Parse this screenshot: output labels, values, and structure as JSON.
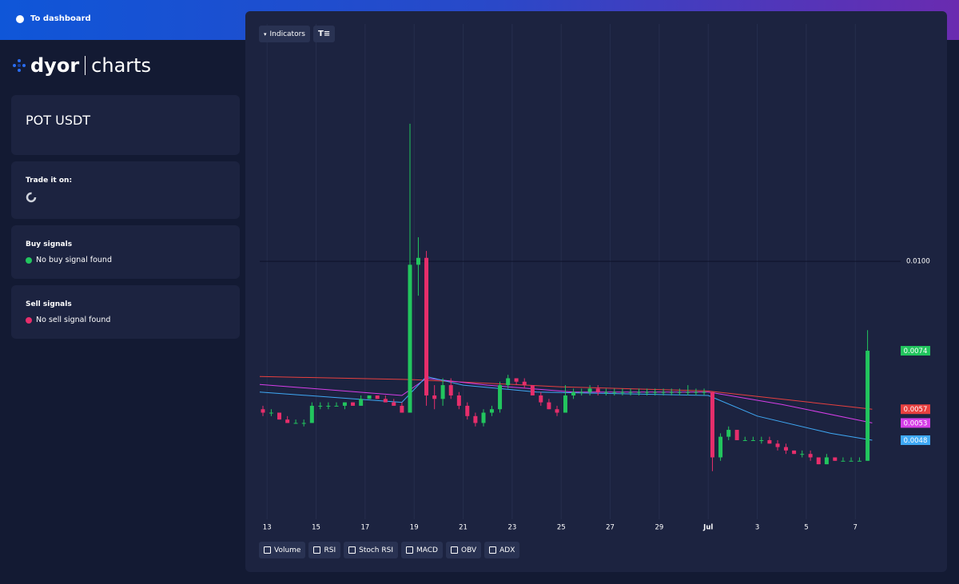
{
  "nav": {
    "link": "To dashboard"
  },
  "logo": {
    "brand": "dyor",
    "product": "charts"
  },
  "pair": "POT USDT",
  "trade": {
    "title": "Trade it on:"
  },
  "buy": {
    "title": "Buy signals",
    "status": "No buy signal found"
  },
  "sell": {
    "title": "Sell signals",
    "status": "No sell signal found"
  },
  "toolbar": {
    "indicators": "Indicators"
  },
  "indicator_toggles": [
    "Volume",
    "RSI",
    "Stoch RSI",
    "MACD",
    "OBV",
    "ADX"
  ],
  "chart_data": {
    "type": "candlestick",
    "up_color": "#22c55e",
    "down_color": "#e62e6b",
    "xlim": [
      12.7,
      38.85
    ],
    "xticks": [
      13,
      15,
      17,
      19,
      21,
      23,
      25,
      27,
      29,
      {
        "value": 31,
        "label": "Jul"
      },
      {
        "value": 33,
        "label": "3"
      },
      {
        "value": 35,
        "label": "5"
      },
      {
        "value": 37,
        "label": "7"
      }
    ],
    "ylim": [
      0.0025,
      0.0169
    ],
    "yticks": [
      {
        "value": 0.01,
        "label": "0.0100"
      }
    ],
    "grid": true,
    "candles": {
      "x": [
        12.83,
        13.17,
        13.5,
        13.83,
        14.17,
        14.5,
        14.83,
        15.17,
        15.5,
        15.83,
        16.17,
        16.5,
        16.83,
        17.17,
        17.5,
        17.83,
        18.17,
        18.5,
        18.83,
        19.17,
        19.5,
        19.83,
        20.17,
        20.5,
        20.83,
        21.17,
        21.5,
        21.83,
        22.17,
        22.5,
        22.83,
        23.17,
        23.5,
        23.83,
        24.17,
        24.5,
        24.83,
        25.17,
        25.5,
        25.83,
        26.17,
        26.5,
        26.83,
        27.17,
        27.5,
        27.83,
        28.17,
        28.5,
        28.83,
        29.17,
        29.5,
        29.83,
        30.17,
        30.5,
        30.83,
        31.17,
        31.5,
        31.83,
        32.17,
        32.5,
        32.83,
        33.17,
        33.5,
        33.83,
        34.17,
        34.5,
        34.83,
        35.17,
        35.5,
        35.83,
        36.17,
        36.5,
        36.83,
        37.17,
        37.5
      ],
      "open": [
        0.0057,
        0.0056,
        0.0056,
        0.0054,
        0.0053,
        0.0053,
        0.0053,
        0.0058,
        0.0058,
        0.0058,
        0.0058,
        0.0059,
        0.0058,
        0.006,
        0.0061,
        0.006,
        0.0059,
        0.0058,
        0.0056,
        0.0099,
        0.0101,
        0.0061,
        0.006,
        0.0064,
        0.0061,
        0.0058,
        0.0055,
        0.0053,
        0.0056,
        0.0057,
        0.0064,
        0.0066,
        0.0065,
        0.0064,
        0.0061,
        0.0059,
        0.0057,
        0.0056,
        0.0061,
        0.0062,
        0.0062,
        0.0063,
        0.0062,
        0.0062,
        0.0062,
        0.0062,
        0.0062,
        0.0062,
        0.0062,
        0.0062,
        0.0062,
        0.0062,
        0.0062,
        0.0062,
        0.0062,
        0.0062,
        0.0043,
        0.0049,
        0.0051,
        0.0048,
        0.0048,
        0.0048,
        0.0048,
        0.0047,
        0.0046,
        0.0045,
        0.0044,
        0.0044,
        0.0043,
        0.0041,
        0.0043,
        0.0042,
        0.0042,
        0.0042,
        0.0042
      ],
      "high": [
        0.0058,
        0.0057,
        0.0056,
        0.0055,
        0.0054,
        0.0054,
        0.0059,
        0.0059,
        0.0059,
        0.0059,
        0.0059,
        0.0059,
        0.0061,
        0.0061,
        0.0061,
        0.0061,
        0.006,
        0.0059,
        0.014,
        0.0107,
        0.0103,
        0.0064,
        0.0066,
        0.0066,
        0.0062,
        0.0059,
        0.0056,
        0.0057,
        0.0058,
        0.0065,
        0.0067,
        0.0066,
        0.0066,
        0.0064,
        0.0062,
        0.006,
        0.0058,
        0.0064,
        0.0063,
        0.0063,
        0.0064,
        0.0064,
        0.0063,
        0.0063,
        0.0063,
        0.0063,
        0.0063,
        0.0063,
        0.0063,
        0.0063,
        0.0063,
        0.0063,
        0.0064,
        0.0063,
        0.0063,
        0.0062,
        0.005,
        0.0052,
        0.0051,
        0.0049,
        0.0049,
        0.0049,
        0.0049,
        0.0048,
        0.0047,
        0.0045,
        0.0045,
        0.0045,
        0.0043,
        0.0044,
        0.0043,
        0.0043,
        0.0043,
        0.0043,
        0.008
      ],
      "low": [
        0.0055,
        0.0055,
        0.0054,
        0.0053,
        0.0053,
        0.0052,
        0.0053,
        0.0057,
        0.0057,
        0.0058,
        0.0057,
        0.0058,
        0.0058,
        0.006,
        0.006,
        0.0059,
        0.0058,
        0.0056,
        0.0056,
        0.009,
        0.0058,
        0.0057,
        0.0058,
        0.006,
        0.0057,
        0.0054,
        0.0052,
        0.0052,
        0.0055,
        0.0056,
        0.0063,
        0.0064,
        0.0063,
        0.0061,
        0.0058,
        0.0057,
        0.0055,
        0.0056,
        0.006,
        0.0061,
        0.0061,
        0.0061,
        0.0061,
        0.0061,
        0.0061,
        0.0061,
        0.0061,
        0.0061,
        0.0061,
        0.0061,
        0.0061,
        0.0061,
        0.0061,
        0.0061,
        0.0061,
        0.0039,
        0.0042,
        0.0048,
        0.0048,
        0.0048,
        0.0048,
        0.0047,
        0.0047,
        0.0045,
        0.0044,
        0.0044,
        0.0043,
        0.0042,
        0.0041,
        0.0041,
        0.0042,
        0.0042,
        0.0042,
        0.0042,
        0.0042
      ],
      "close": [
        0.0056,
        0.0056,
        0.0054,
        0.0053,
        0.0053,
        0.0053,
        0.0058,
        0.0058,
        0.0058,
        0.0058,
        0.0059,
        0.0058,
        0.006,
        0.0061,
        0.006,
        0.0059,
        0.0058,
        0.0056,
        0.0099,
        0.0101,
        0.0061,
        0.006,
        0.0064,
        0.0061,
        0.0058,
        0.0055,
        0.0053,
        0.0056,
        0.0057,
        0.0064,
        0.0066,
        0.0065,
        0.0064,
        0.0061,
        0.0059,
        0.0057,
        0.0056,
        0.0061,
        0.0062,
        0.0062,
        0.0063,
        0.0062,
        0.0062,
        0.0062,
        0.0062,
        0.0062,
        0.0062,
        0.0062,
        0.0062,
        0.0062,
        0.0062,
        0.0062,
        0.0062,
        0.0062,
        0.0062,
        0.0043,
        0.0049,
        0.0051,
        0.0048,
        0.0048,
        0.0048,
        0.0048,
        0.0047,
        0.0046,
        0.0045,
        0.0044,
        0.0044,
        0.0043,
        0.0041,
        0.0043,
        0.0042,
        0.0042,
        0.0042,
        0.0042,
        0.0074
      ]
    },
    "series": [
      {
        "color": "#e8403f",
        "x": [
          12.7,
          19,
          25,
          31,
          37.69
        ],
        "values": [
          0.00665,
          0.00656,
          0.00635,
          0.00623,
          0.0057
        ]
      },
      {
        "color": "#d63ee8",
        "x": [
          12.7,
          18.5,
          19.5,
          22,
          25.5,
          31,
          34,
          37.69
        ],
        "values": [
          0.00642,
          0.0061,
          0.0066,
          0.0064,
          0.0062,
          0.0062,
          0.00584,
          0.0053
        ]
      },
      {
        "color": "#3fa9f5",
        "x": [
          12.7,
          18.5,
          19.5,
          21,
          24,
          31,
          33,
          36,
          37.69
        ],
        "values": [
          0.0062,
          0.0059,
          0.00665,
          0.0064,
          0.0062,
          0.0061,
          0.0055,
          0.005,
          0.0048
        ]
      }
    ]
  }
}
